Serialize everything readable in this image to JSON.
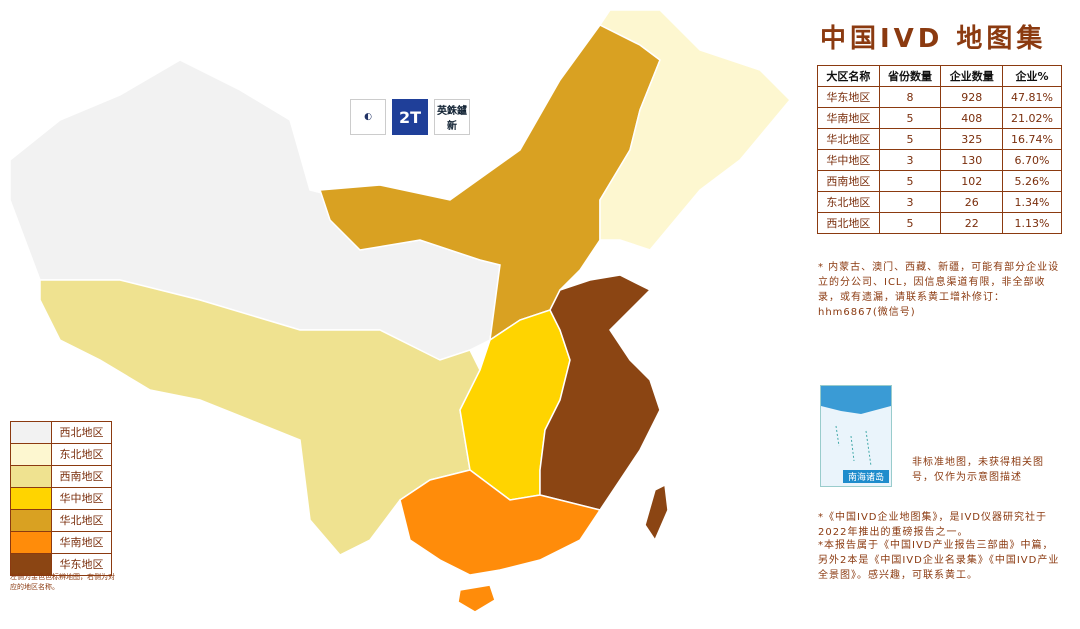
{
  "title": "中国IVD 地图集",
  "logos": [
    "2T",
    "英銖鑪新"
  ],
  "table": {
    "headers": [
      "大区名称",
      "省份数量",
      "企业数量",
      "企业%"
    ],
    "rows": [
      [
        "华东地区",
        "8",
        "928",
        "47.81%"
      ],
      [
        "华南地区",
        "5",
        "408",
        "21.02%"
      ],
      [
        "华北地区",
        "5",
        "325",
        "16.74%"
      ],
      [
        "华中地区",
        "3",
        "130",
        "6.70%"
      ],
      [
        "西南地区",
        "5",
        "102",
        "5.26%"
      ],
      [
        "东北地区",
        "3",
        "26",
        "1.34%"
      ],
      [
        "西北地区",
        "5",
        "22",
        "1.13%"
      ]
    ]
  },
  "table_note": "* 内蒙古、澳门、西藏、新疆，可能有部分企业设立的分公司、ICL，因信息渠道有限，非全部收录，或有遗漏，请联系黄工增补修订：hhm6867(微信号)",
  "inset_label": "南海诸岛",
  "map_note": "非标准地图，未获得相关图号，仅作为示意图描述",
  "footer_notes": [
    "*《中国IVD企业地图集》，是IVD仪器研究社于2022年推出的重磅报告之一。",
    "*本报告属于《中国IVD产业报告三部曲》中篇，另外2本是《中国IVD企业名录集》《中国IVD产业全景图》。感兴趣，可联系黄工。"
  ],
  "legend": [
    {
      "name": "西北地区",
      "color": "#f2f2f2"
    },
    {
      "name": "东北地区",
      "color": "#fdf7d0"
    },
    {
      "name": "西南地区",
      "color": "#efe290"
    },
    {
      "name": "华中地区",
      "color": "#ffd400"
    },
    {
      "name": "华北地区",
      "color": "#d9a122"
    },
    {
      "name": "华南地区",
      "color": "#ff8c0a"
    },
    {
      "name": "华东地区",
      "color": "#8b4513"
    }
  ],
  "legend_note": "左侧为金色色标辨地图，右侧为对应的地区名称。"
}
